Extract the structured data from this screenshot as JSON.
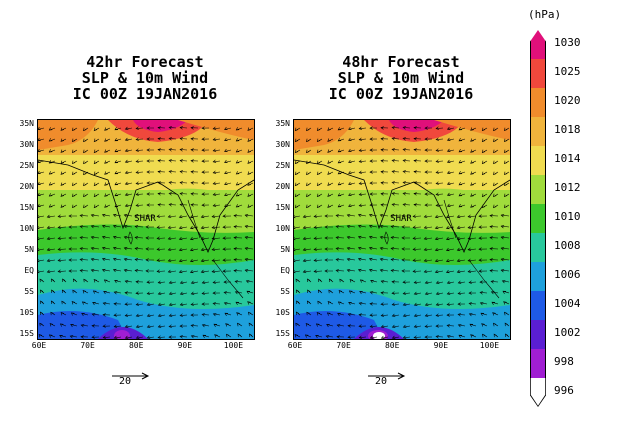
{
  "panels": [
    {
      "title_line1": "42hr Forecast",
      "title_line2": "SLP & 10m Wind",
      "title_line3": "IC 00Z 19JAN2016",
      "place_label": "SHAR"
    },
    {
      "title_line1": "48hr Forecast",
      "title_line2": "SLP & 10m Wind",
      "title_line3": "IC 00Z 19JAN2016",
      "place_label": "SHAR"
    }
  ],
  "lat_labels": [
    "35N",
    "30N",
    "25N",
    "20N",
    "15N",
    "10N",
    "5N",
    "EQ",
    "5S",
    "10S",
    "15S"
  ],
  "lon_labels": [
    "60E",
    "70E",
    "80E",
    "90E",
    "100E"
  ],
  "reference_vector": "20",
  "colorbar": {
    "unit": "(hPa)",
    "levels": [
      "1030",
      "1025",
      "1020",
      "1018",
      "1014",
      "1012",
      "1010",
      "1008",
      "1006",
      "1004",
      "1002",
      "998",
      "996"
    ],
    "colors": [
      "#e0107a",
      "#f0483c",
      "#f08c2c",
      "#f0b43c",
      "#f0dc50",
      "#a0dc3c",
      "#3cc82c",
      "#28c89c",
      "#1ea0dc",
      "#1e5ae6",
      "#5a1ed2",
      "#a01ed2",
      "#ffffff"
    ]
  }
}
